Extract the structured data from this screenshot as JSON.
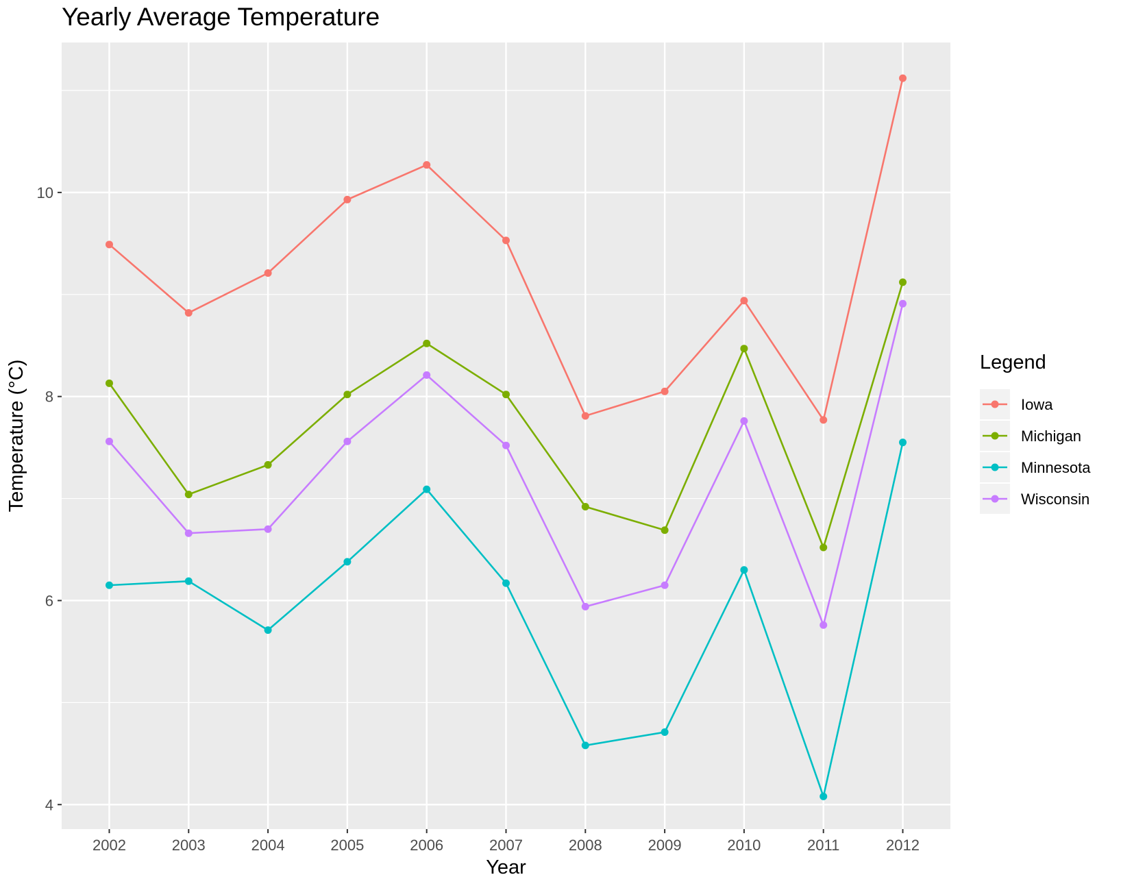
{
  "chart_data": {
    "type": "line",
    "title": "Yearly Average Temperature",
    "xlabel": "Year",
    "ylabel": "Temperature (°C)",
    "x": [
      2002,
      2003,
      2004,
      2005,
      2006,
      2007,
      2008,
      2009,
      2010,
      2011,
      2012
    ],
    "xlim": [
      2001.4,
      2012.6
    ],
    "ylim": [
      3.76,
      11.47
    ],
    "yticks": [
      4,
      6,
      8,
      10
    ],
    "grid": true,
    "legend_title": "Legend",
    "legend_position": "right",
    "series": [
      {
        "name": "Iowa",
        "color": "#F8766D",
        "values": [
          9.49,
          8.82,
          9.21,
          9.93,
          10.27,
          9.53,
          7.81,
          8.05,
          8.94,
          7.77,
          11.12
        ]
      },
      {
        "name": "Michigan",
        "color": "#7CAE00",
        "values": [
          8.13,
          7.04,
          7.33,
          8.02,
          8.52,
          8.02,
          6.92,
          6.69,
          8.47,
          6.52,
          9.12
        ]
      },
      {
        "name": "Minnesota",
        "color": "#00BFC4",
        "values": [
          6.15,
          6.19,
          5.71,
          6.38,
          7.09,
          6.17,
          4.58,
          4.71,
          6.3,
          4.08,
          7.55
        ]
      },
      {
        "name": "Wisconsin",
        "color": "#C77CFF",
        "values": [
          7.56,
          6.66,
          6.7,
          7.56,
          8.21,
          7.52,
          5.94,
          6.15,
          7.76,
          5.76,
          8.91
        ]
      }
    ]
  }
}
